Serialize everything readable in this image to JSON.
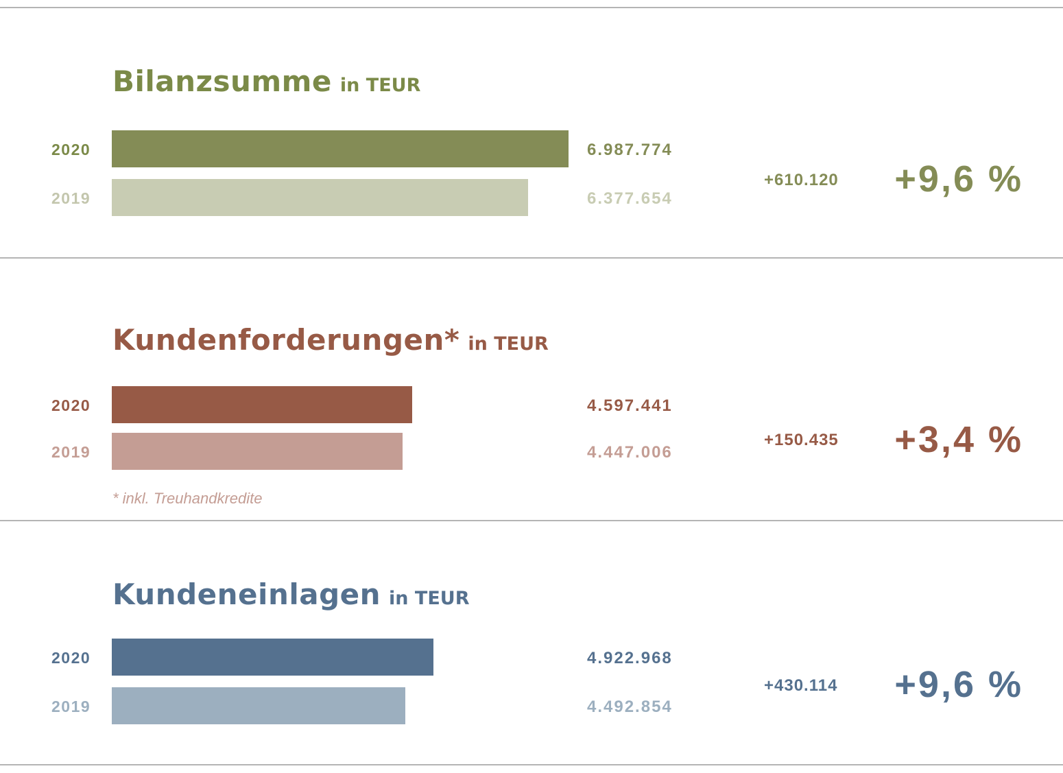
{
  "chart_data": [
    {
      "type": "bar",
      "title": "Bilanzsumme",
      "unit": "in TEUR",
      "categories": [
        "2020",
        "2019"
      ],
      "values": [
        6987774,
        6377654
      ],
      "value_labels": [
        "6.987.774",
        "6.377.654"
      ],
      "change_abs": "+610.120",
      "change_pct": "+9,6 %",
      "colors": {
        "current": "#848c56",
        "previous": "#c8ccb3",
        "title": "#7b8a48",
        "year_current": "#7b8a48",
        "year_previous": "#c3c6ad"
      },
      "xlim": [
        0,
        10500000
      ]
    },
    {
      "type": "bar",
      "title": "Kundenforderungen*",
      "unit": "in TEUR",
      "categories": [
        "2020",
        "2019"
      ],
      "values": [
        4597441,
        4447006
      ],
      "value_labels": [
        "4.597.441",
        "4.447.006"
      ],
      "change_abs": "+150.435",
      "change_pct": "+3,4 %",
      "footnote": "* inkl. Treuhandkredite",
      "colors": {
        "current": "#975a46",
        "previous": "#c49d94",
        "title": "#975a46",
        "year_current": "#975a46",
        "year_previous": "#c49d94"
      },
      "xlim": [
        0,
        10500000
      ]
    },
    {
      "type": "bar",
      "title": "Kundeneinlagen",
      "unit": "in TEUR",
      "categories": [
        "2020",
        "2019"
      ],
      "values": [
        4922968,
        4492854
      ],
      "value_labels": [
        "4.922.968",
        "4.492.854"
      ],
      "change_abs": "+430.114",
      "change_pct": "+9,6 %",
      "colors": {
        "current": "#55718f",
        "previous": "#9cafbf",
        "title": "#55718f",
        "year_current": "#55718f",
        "year_previous": "#9cafbf"
      },
      "xlim": [
        0,
        10500000
      ]
    }
  ]
}
